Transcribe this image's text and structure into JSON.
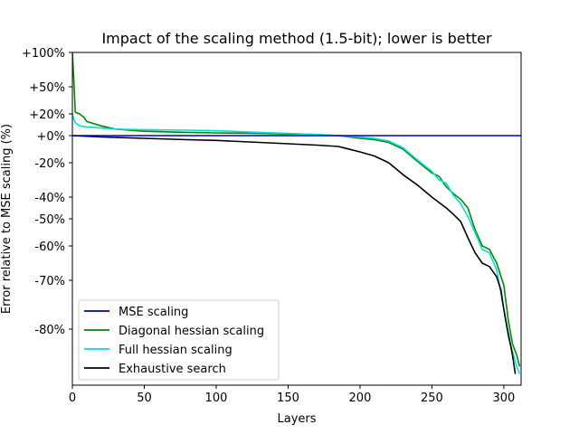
{
  "chart_data": {
    "type": "line",
    "title": "Impact of the scaling method (1.5-bit); lower is better",
    "xlabel": "Layers",
    "ylabel": "Error relative to MSE scaling (%)",
    "xlim": [
      0,
      312
    ],
    "xticks": [
      0,
      50,
      100,
      150,
      200,
      250,
      300
    ],
    "ylim_display": [
      "+100%",
      "-90%"
    ],
    "yticks": [
      {
        "value": 100,
        "label": "+100%"
      },
      {
        "value": 50,
        "label": "+50%"
      },
      {
        "value": 20,
        "label": "+20%"
      },
      {
        "value": 0,
        "label": "+0%"
      },
      {
        "value": -20,
        "label": "-20%"
      },
      {
        "value": -40,
        "label": "-40%"
      },
      {
        "value": -50,
        "label": "-50%"
      },
      {
        "value": -60,
        "label": "-60%"
      },
      {
        "value": -70,
        "label": "-70%"
      },
      {
        "value": -80,
        "label": "-80%"
      }
    ],
    "grid": false,
    "legend_position": "lower-left",
    "series": [
      {
        "name": "MSE scaling",
        "color": "#0000cc",
        "x": [
          0,
          312
        ],
        "y": [
          0,
          0
        ]
      },
      {
        "name": "Diagonal hessian scaling",
        "color": "#008800",
        "x": [
          0,
          1,
          2,
          5,
          8,
          10,
          15,
          20,
          30,
          50,
          80,
          100,
          130,
          150,
          170,
          185,
          200,
          210,
          220,
          230,
          240,
          250,
          255,
          260,
          265,
          270,
          275,
          280,
          285,
          290,
          295,
          300,
          303,
          306,
          309,
          311
        ],
        "y": [
          100,
          60,
          22,
          20,
          17,
          13,
          11,
          9,
          6,
          4,
          3,
          2.5,
          2,
          1.5,
          1,
          0,
          -2,
          -3,
          -5,
          -10,
          -19,
          -26,
          -28,
          -34,
          -38,
          -41,
          -45,
          -54,
          -60,
          -61,
          -65,
          -71,
          -78,
          -84,
          -87,
          -90
        ]
      },
      {
        "name": "Full hessian scaling",
        "color": "#00dddd",
        "x": [
          0,
          1,
          2,
          5,
          10,
          20,
          30,
          50,
          80,
          100,
          130,
          150,
          170,
          185,
          200,
          210,
          220,
          230,
          240,
          250,
          255,
          260,
          265,
          270,
          275,
          280,
          285,
          290,
          295,
          300,
          303,
          306,
          309,
          311
        ],
        "y": [
          20,
          15,
          12,
          9,
          8,
          7,
          6,
          5.5,
          5,
          4.5,
          3,
          2,
          1,
          0,
          -1,
          -2,
          -4,
          -9,
          -18,
          -25,
          -30,
          -32,
          -39,
          -43,
          -49,
          -55,
          -61,
          -62,
          -67,
          -76,
          -82,
          -86,
          -90,
          -92
        ]
      },
      {
        "name": "Exhaustive search",
        "color": "#000000",
        "x": [
          0,
          20,
          50,
          80,
          100,
          130,
          150,
          170,
          185,
          200,
          210,
          220,
          230,
          240,
          250,
          260,
          265,
          270,
          275,
          280,
          285,
          290,
          295,
          298,
          300,
          303,
          306,
          308
        ],
        "y": [
          0,
          -1,
          -2,
          -3,
          -3.5,
          -5,
          -6,
          -7,
          -8,
          -12,
          -15,
          -20,
          -27,
          -33,
          -40,
          -45,
          -48,
          -51,
          -57,
          -62,
          -65,
          -66,
          -69,
          -72,
          -76,
          -81,
          -87,
          -92
        ]
      }
    ]
  }
}
